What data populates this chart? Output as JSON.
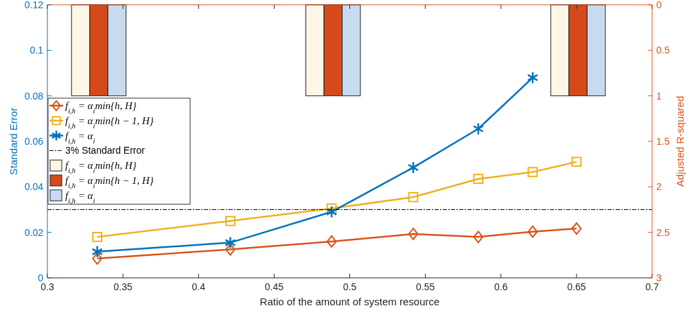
{
  "chart_data": {
    "type": "line",
    "xlabel": "Ratio of the amount of system resource",
    "ylabel": "Standard Error",
    "y2label": "Adjusted R-squared",
    "xlim": [
      0.3,
      0.7
    ],
    "xticks": [
      0.3,
      0.35,
      0.4,
      0.45,
      0.5,
      0.55,
      0.6,
      0.65,
      0.7
    ],
    "ylim": [
      0,
      0.12
    ],
    "yticks": [
      0,
      0.02,
      0.04,
      0.06,
      0.08,
      0.1,
      0.12
    ],
    "y2lim": [
      3,
      0
    ],
    "y2ticks": [
      0,
      0.5,
      1,
      1.5,
      2,
      2.5,
      3
    ],
    "legend": "left",
    "grid": false,
    "line_style": "solid",
    "ref_lines": [
      {
        "axis": "y",
        "value": 0.03,
        "label": "3% Standard Error",
        "color": "#000000",
        "line_style": "dashed"
      }
    ],
    "series": [
      {
        "name": "f$_{i,h}$ = α$_{i}$min{h, H}",
        "marker": "diamond",
        "color": "#d95319",
        "x": [
          0.333,
          0.421,
          0.488,
          0.542,
          0.585,
          0.621,
          0.65
        ],
        "values": [
          0.0085,
          0.0125,
          0.016,
          0.0193,
          0.018,
          0.0203,
          0.0217
        ]
      },
      {
        "name": "f$_{i,h}$ = α$_{i}$min{h − 1, H}",
        "marker": "square",
        "color": "#edb120",
        "x": [
          0.333,
          0.421,
          0.488,
          0.542,
          0.585,
          0.621,
          0.65
        ],
        "values": [
          0.018,
          0.025,
          0.0305,
          0.0355,
          0.0435,
          0.0465,
          0.051
        ]
      },
      {
        "name": "f$_{i,h}$ = α$_{i}$",
        "marker": "cross",
        "color": "#0072bd",
        "x": [
          0.333,
          0.421,
          0.488,
          0.542,
          0.585,
          0.621
        ],
        "values": [
          0.0115,
          0.0155,
          0.029,
          0.0485,
          0.0655,
          0.088
        ]
      },
      {
        "name": "f$_{i,h}$ = α$_{i}$min{h, H}",
        "type": "bar",
        "axis": "y2",
        "color": "#fdf6e5",
        "x": [
          0.334,
          0.489,
          0.651
        ],
        "values": [
          1,
          1,
          1
        ]
      },
      {
        "name": "f$_{i,h}$ = α$_{i}$min{h − 1, H}",
        "type": "bar",
        "axis": "y2",
        "color": "#d54a1a",
        "x": [
          0.334,
          0.489,
          0.651
        ],
        "values": [
          1,
          1,
          1
        ]
      },
      {
        "name": "f$_{i,h}$ = α$_{i}$",
        "type": "bar",
        "axis": "y2",
        "color": "#c7dbf0",
        "x": [
          0.334,
          0.489,
          0.651
        ],
        "values": [
          1,
          1,
          1
        ]
      }
    ]
  }
}
